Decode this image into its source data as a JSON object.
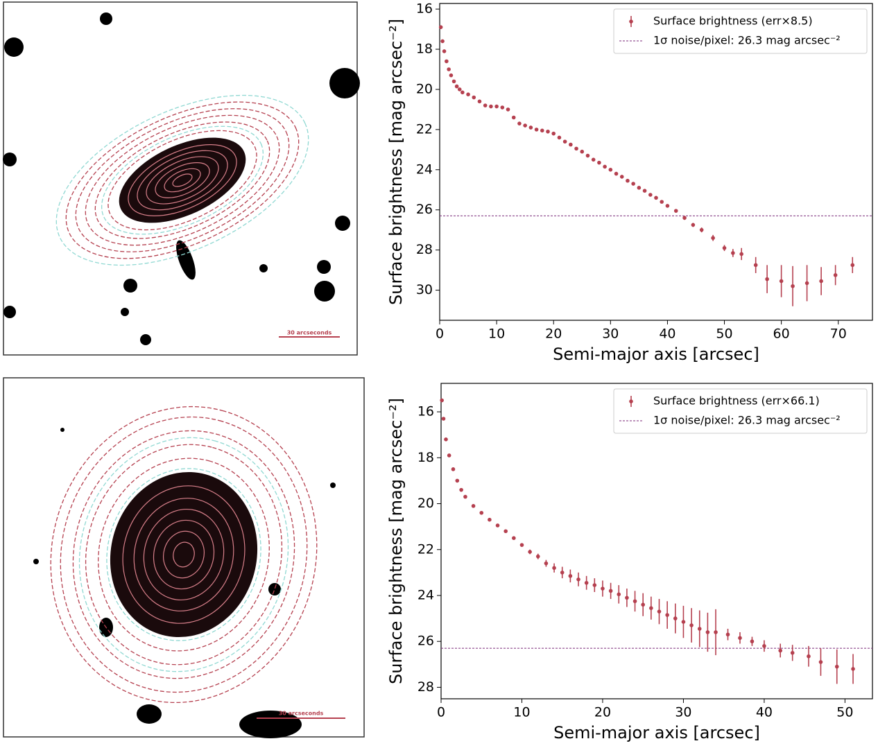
{
  "images": [
    {
      "scale_label": "30 arcseconds"
    },
    {
      "scale_label": "30 arcseconds"
    }
  ],
  "chart_data": [
    {
      "type": "errorbar",
      "xlabel": "Semi-major axis [arcsec]",
      "ylabel": "Surface brightness [mag arcsec⁻²]",
      "xlim": [
        0,
        76
      ],
      "ylim": [
        15.72,
        31.5
      ],
      "invert_y": true,
      "xticks": [
        0,
        10,
        20,
        30,
        40,
        50,
        60,
        70
      ],
      "yticks": [
        16,
        18,
        20,
        22,
        24,
        26,
        28,
        30
      ],
      "legend": "upper right",
      "series": [
        {
          "name": "Surface brightness (err×8.5)",
          "color": "#b5404f",
          "x": [
            0.2,
            0.5,
            0.8,
            1.2,
            1.6,
            2,
            2.5,
            3,
            3.5,
            4,
            5,
            6,
            7,
            8,
            9,
            10,
            11,
            12,
            13,
            14,
            15,
            16,
            17,
            18,
            19,
            20,
            21,
            22,
            23,
            24,
            25,
            26,
            27,
            28,
            29,
            30,
            31,
            32,
            33,
            34,
            35,
            36,
            37,
            38,
            39,
            40,
            41.5,
            43,
            44.5,
            46,
            48,
            50,
            51.5,
            53,
            55.5,
            57.5,
            60,
            62,
            64.5,
            67,
            69.5,
            72.5
          ],
          "values": [
            16.9,
            17.6,
            18.1,
            18.6,
            19.0,
            19.3,
            19.6,
            19.85,
            20.0,
            20.15,
            20.25,
            20.4,
            20.6,
            20.8,
            20.85,
            20.85,
            20.9,
            21.0,
            21.4,
            21.7,
            21.8,
            21.9,
            22.0,
            22.05,
            22.1,
            22.2,
            22.4,
            22.6,
            22.75,
            22.95,
            23.1,
            23.3,
            23.5,
            23.65,
            23.85,
            24.0,
            24.2,
            24.35,
            24.55,
            24.7,
            24.9,
            25.05,
            25.25,
            25.4,
            25.6,
            25.8,
            26.05,
            26.4,
            26.75,
            27.0,
            27.4,
            27.9,
            28.15,
            28.2,
            28.75,
            29.45,
            29.55,
            29.8,
            29.65,
            29.55,
            29.25,
            28.75
          ],
          "errors": [
            0.05,
            0.05,
            0.05,
            0.05,
            0.05,
            0.05,
            0.05,
            0.05,
            0.05,
            0.05,
            0.05,
            0.05,
            0.05,
            0.05,
            0.05,
            0.05,
            0.05,
            0.05,
            0.05,
            0.05,
            0.05,
            0.05,
            0.05,
            0.05,
            0.05,
            0.05,
            0.05,
            0.05,
            0.05,
            0.05,
            0.05,
            0.05,
            0.05,
            0.05,
            0.05,
            0.05,
            0.05,
            0.05,
            0.05,
            0.05,
            0.05,
            0.05,
            0.05,
            0.05,
            0.05,
            0.05,
            0.08,
            0.1,
            0.1,
            0.12,
            0.15,
            0.15,
            0.2,
            0.3,
            0.4,
            0.7,
            0.8,
            1.0,
            0.9,
            0.7,
            0.5,
            0.4
          ]
        }
      ],
      "hline": {
        "name": "1σ noise/pixel: 26.3 mag arcsec⁻²",
        "value": 26.3,
        "color": "#7b2a7a"
      }
    },
    {
      "type": "errorbar",
      "xlabel": "Semi-major axis [arcsec]",
      "ylabel": "Surface brightness [mag arcsec⁻²]",
      "xlim": [
        0,
        53.4
      ],
      "ylim": [
        14.76,
        28.5
      ],
      "invert_y": true,
      "xticks": [
        0,
        10,
        20,
        30,
        40,
        50
      ],
      "yticks": [
        16,
        18,
        20,
        22,
        24,
        26,
        28
      ],
      "legend": "upper right",
      "series": [
        {
          "name": "Surface brightness (err×66.1)",
          "color": "#b5404f",
          "x": [
            0.1,
            0.3,
            0.6,
            1,
            1.5,
            2,
            2.5,
            3,
            4,
            5,
            6,
            7,
            8,
            9,
            10,
            11,
            12,
            13,
            14,
            15,
            16,
            17,
            18,
            19,
            20,
            21,
            22,
            23,
            24,
            25,
            26,
            27,
            28,
            29,
            30,
            31,
            32,
            33,
            34,
            35.5,
            37,
            38.5,
            40,
            42,
            43.5,
            45.5,
            47,
            49,
            51
          ],
          "values": [
            15.5,
            16.3,
            17.2,
            17.9,
            18.5,
            19.0,
            19.4,
            19.7,
            20.1,
            20.4,
            20.7,
            20.95,
            21.2,
            21.5,
            21.8,
            22.1,
            22.3,
            22.6,
            22.8,
            23.0,
            23.15,
            23.3,
            23.45,
            23.55,
            23.7,
            23.8,
            23.95,
            24.1,
            24.25,
            24.4,
            24.55,
            24.7,
            24.85,
            25.0,
            25.15,
            25.3,
            25.45,
            25.6,
            25.6,
            25.7,
            25.85,
            26.0,
            26.2,
            26.4,
            26.5,
            26.65,
            26.9,
            27.1,
            27.2
          ],
          "errors": [
            0.02,
            0.02,
            0.02,
            0.02,
            0.02,
            0.02,
            0.02,
            0.02,
            0.02,
            0.02,
            0.03,
            0.04,
            0.05,
            0.06,
            0.08,
            0.1,
            0.12,
            0.15,
            0.2,
            0.25,
            0.28,
            0.3,
            0.3,
            0.3,
            0.35,
            0.35,
            0.4,
            0.4,
            0.45,
            0.5,
            0.5,
            0.55,
            0.6,
            0.65,
            0.7,
            0.75,
            0.8,
            0.85,
            1.0,
            0.25,
            0.25,
            0.2,
            0.25,
            0.3,
            0.35,
            0.45,
            0.6,
            0.75,
            0.65
          ]
        }
      ],
      "hline": {
        "name": "1σ noise/pixel: 26.3 mag arcsec⁻²",
        "value": 26.3,
        "color": "#7b2a7a"
      }
    }
  ]
}
